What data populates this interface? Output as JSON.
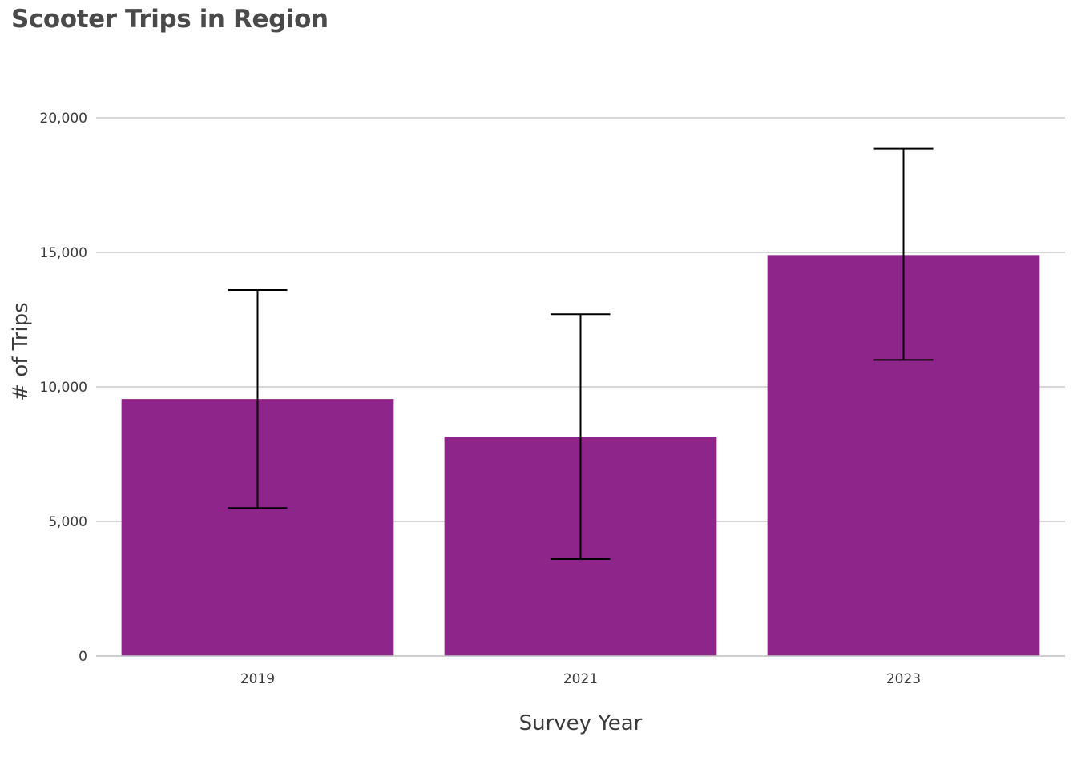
{
  "chart_data": {
    "type": "bar",
    "title": "Scooter Trips in Region",
    "xlabel": "Survey Year",
    "ylabel": "# of Trips",
    "categories": [
      "2019",
      "2021",
      "2023"
    ],
    "values": [
      9550,
      8150,
      14900
    ],
    "error_low": [
      5500,
      3600,
      11000
    ],
    "error_high": [
      13600,
      12700,
      18850
    ],
    "ylim": [
      0,
      20000
    ],
    "yticks": [
      0,
      5000,
      10000,
      15000,
      20000
    ],
    "ytick_labels": [
      "0",
      "5,000",
      "10,000",
      "15,000",
      "20,000"
    ],
    "grid": true,
    "legend": "none",
    "colors": {
      "bar": "#8e258b",
      "grid": "#c8c8c8",
      "error_bar": "#000000"
    }
  }
}
